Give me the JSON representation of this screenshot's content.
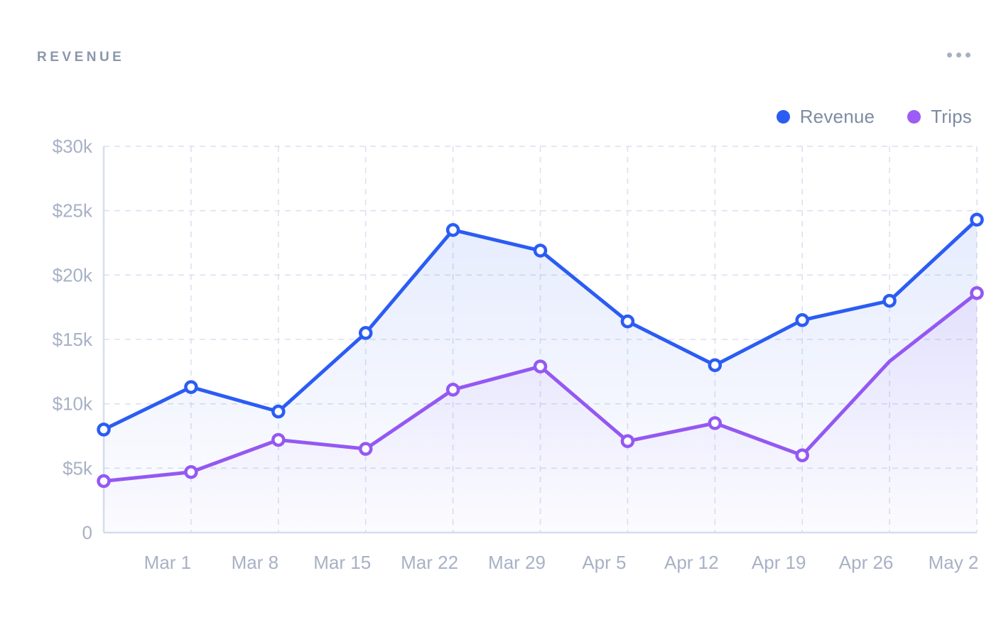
{
  "header": {
    "title": "REVENUE",
    "menu_icon": "ellipsis-icon"
  },
  "legend": {
    "position": "top-right",
    "items": [
      {
        "label": "Revenue",
        "color": "#2b5cf3"
      },
      {
        "label": "Trips",
        "color": "#9d5cf5"
      }
    ]
  },
  "chart_data": {
    "type": "line",
    "title": "REVENUE",
    "background": "#ffffff",
    "grid": "dashed horizontal and vertical gridlines, solid left and bottom axis borders",
    "grid_color": "#dce1ef",
    "axis_border_color": "#d8ddf0",
    "legend_position": "top-right",
    "ylim": [
      0,
      30000
    ],
    "y_ticks": {
      "labels": [
        "$30k",
        "$25k",
        "$20k",
        "$15k",
        "$10k",
        "$5k",
        "0"
      ],
      "values": [
        30000,
        25000,
        20000,
        15000,
        10000,
        5000,
        0
      ]
    },
    "x_labels": [
      "",
      "Mar 1",
      "Mar 8",
      "Mar 15",
      "Mar 22",
      "Mar 29",
      "Apr 5",
      "Apr 12",
      "Apr 19",
      "Apr 26",
      "May 2"
    ],
    "series": [
      {
        "name": "Revenue",
        "color": "#2b5cf3",
        "fill_opacity_top": 0.14,
        "values": [
          8000,
          11300,
          9400,
          15500,
          23500,
          21900,
          16400,
          13000,
          16500,
          18000,
          24300
        ],
        "marker_skip_indices": []
      },
      {
        "name": "Trips",
        "color": "#9458f2",
        "fill_opacity_top": 0.16,
        "values": [
          4000,
          4700,
          7200,
          6500,
          11100,
          12900,
          7100,
          8500,
          6000,
          13300,
          18600
        ],
        "marker_skip_indices": [
          9
        ]
      }
    ]
  }
}
